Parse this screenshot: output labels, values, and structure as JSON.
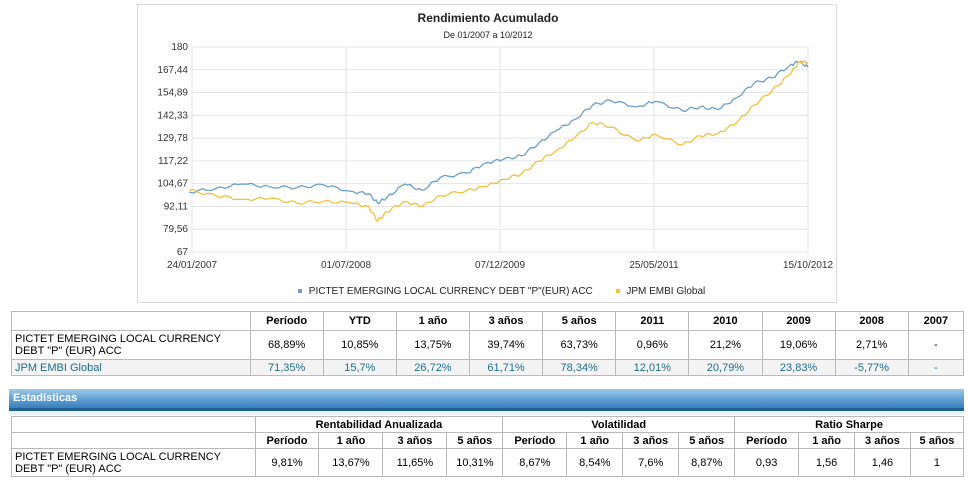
{
  "chart_data": {
    "type": "line",
    "title": "Rendimiento Acumulado",
    "subtitle": "De 01/2007 a 10/2012",
    "ylim": [
      67,
      180
    ],
    "y_ticks": [
      "180",
      "167,44",
      "154,89",
      "142,33",
      "129,78",
      "117,22",
      "104,67",
      "92,11",
      "79,56",
      "67"
    ],
    "x_ticks": [
      "24/01/2007",
      "01/07/2008",
      "07/12/2009",
      "25/05/2011",
      "15/10/2012"
    ],
    "grid": true,
    "legend_position": "bottom",
    "series": [
      {
        "name": "PICTET EMERGING LOCAL CURRENCY DEBT \"P\"(EUR) ACC",
        "color": "#6b9ec8",
        "points": [
          [
            "2007-01",
            100.0
          ],
          [
            "2007-04",
            102.0
          ],
          [
            "2007-07",
            104.5
          ],
          [
            "2007-10",
            103.0
          ],
          [
            "2008-01",
            102.5
          ],
          [
            "2008-04",
            104.0
          ],
          [
            "2008-07",
            100.5
          ],
          [
            "2008-09",
            99.0
          ],
          [
            "2008-10",
            94.0
          ],
          [
            "2008-11",
            97.0
          ],
          [
            "2009-01",
            104.5
          ],
          [
            "2009-03",
            101.0
          ],
          [
            "2009-05",
            108.0
          ],
          [
            "2009-08",
            110.5
          ],
          [
            "2009-10",
            116.0
          ],
          [
            "2009-12",
            118.0
          ],
          [
            "2010-02",
            120.0
          ],
          [
            "2010-04",
            127.0
          ],
          [
            "2010-06",
            134.0
          ],
          [
            "2010-08",
            140.0
          ],
          [
            "2010-10",
            148.0
          ],
          [
            "2010-12",
            150.5
          ],
          [
            "2011-03",
            147.0
          ],
          [
            "2011-05",
            150.0
          ],
          [
            "2011-08",
            145.0
          ],
          [
            "2011-10",
            147.0
          ],
          [
            "2011-12",
            145.5
          ],
          [
            "2012-02",
            152.0
          ],
          [
            "2012-04",
            160.0
          ],
          [
            "2012-06",
            163.0
          ],
          [
            "2012-08",
            170.0
          ],
          [
            "2012-09",
            172.0
          ],
          [
            "2012-10",
            168.89
          ]
        ]
      },
      {
        "name": "JPM EMBI Global",
        "color": "#f0c040",
        "points": [
          [
            "2007-01",
            101.0
          ],
          [
            "2007-04",
            98.0
          ],
          [
            "2007-07",
            96.0
          ],
          [
            "2007-10",
            96.5
          ],
          [
            "2008-01",
            94.0
          ],
          [
            "2008-04",
            95.0
          ],
          [
            "2008-07",
            94.0
          ],
          [
            "2008-09",
            92.0
          ],
          [
            "2008-10",
            84.0
          ],
          [
            "2008-11",
            89.0
          ],
          [
            "2009-01",
            95.0
          ],
          [
            "2009-03",
            92.0
          ],
          [
            "2009-05",
            98.0
          ],
          [
            "2009-08",
            101.0
          ],
          [
            "2009-10",
            103.0
          ],
          [
            "2009-12",
            107.0
          ],
          [
            "2010-02",
            110.0
          ],
          [
            "2010-04",
            117.0
          ],
          [
            "2010-06",
            123.0
          ],
          [
            "2010-08",
            130.0
          ],
          [
            "2010-10",
            138.5
          ],
          [
            "2010-12",
            136.0
          ],
          [
            "2011-03",
            128.0
          ],
          [
            "2011-05",
            132.0
          ],
          [
            "2011-08",
            126.0
          ],
          [
            "2011-10",
            131.0
          ],
          [
            "2011-12",
            132.5
          ],
          [
            "2012-02",
            138.0
          ],
          [
            "2012-04",
            148.0
          ],
          [
            "2012-06",
            156.0
          ],
          [
            "2012-08",
            165.0
          ],
          [
            "2012-09",
            172.0
          ],
          [
            "2012-10",
            171.35
          ]
        ]
      }
    ]
  },
  "performance": {
    "headers": [
      "Período",
      "YTD",
      "1 año",
      "3 años",
      "5 años",
      "2011",
      "2010",
      "2009",
      "2008",
      "2007"
    ],
    "rows": [
      {
        "name": "PICTET EMERGING LOCAL CURRENCY DEBT \"P\" (EUR) ACC",
        "values": [
          "68,89%",
          "10,85%",
          "13,75%",
          "39,74%",
          "63,73%",
          "0,96%",
          "21,2%",
          "19,06%",
          "2,71%",
          "-"
        ]
      },
      {
        "name": "JPM EMBI Global",
        "values": [
          "71,35%",
          "15,7%",
          "26,72%",
          "61,71%",
          "78,34%",
          "12,01%",
          "20,79%",
          "23,83%",
          "-5,77%",
          "-"
        ]
      }
    ]
  },
  "stats": {
    "title": "Estadísticas",
    "groups": [
      "Rentabilidad Anualizada",
      "Volatilidad",
      "Ratio Sharpe"
    ],
    "subheaders": [
      "Período",
      "1 año",
      "3 años",
      "5 años",
      "Período",
      "1 año",
      "3 años",
      "5 años",
      "Período",
      "1 año",
      "3 años",
      "5 años"
    ],
    "row": {
      "name": "PICTET EMERGING LOCAL CURRENCY DEBT \"P\" (EUR) ACC",
      "values": [
        "9,81%",
        "13,67%",
        "11,65%",
        "10,31%",
        "8,67%",
        "8,54%",
        "7,6%",
        "8,87%",
        "0,93",
        "1,56",
        "1,46",
        "1"
      ]
    }
  }
}
